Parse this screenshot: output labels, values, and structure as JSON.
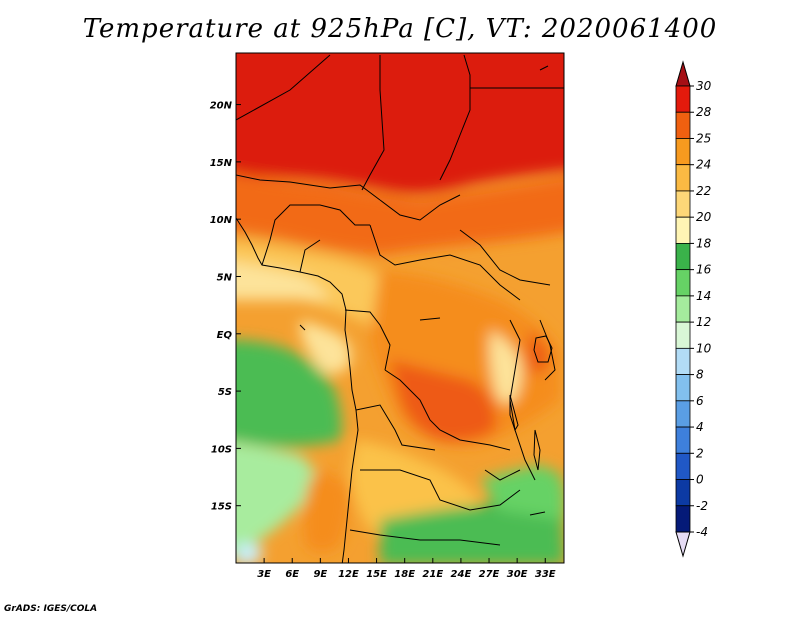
{
  "title": "Temperature at 925hPa [C], VT: 2020061400",
  "credit": "GrADS: IGES/COLA",
  "map": {
    "lat_labels": [
      "20N",
      "15N",
      "10N",
      "5N",
      "EQ",
      "5S",
      "10S",
      "15S"
    ],
    "lat_values": [
      20,
      15,
      10,
      5,
      0,
      -5,
      -10,
      -15
    ],
    "lon_labels": [
      "3E",
      "6E",
      "9E",
      "12E",
      "15E",
      "18E",
      "21E",
      "24E",
      "27E",
      "30E",
      "33E"
    ],
    "lon_values": [
      3,
      6,
      9,
      12,
      15,
      18,
      21,
      24,
      27,
      30,
      33
    ],
    "lat_range": [
      -20,
      24.5
    ],
    "lon_range": [
      0,
      35
    ]
  },
  "colorbar": {
    "labels": [
      "30",
      "28",
      "25",
      "24",
      "22",
      "20",
      "18",
      "16",
      "14",
      "12",
      "10",
      "8",
      "6",
      "4",
      "2",
      "0",
      "-2",
      "-4"
    ],
    "colors": [
      "#a50f15",
      "#e31a0c",
      "#f06010",
      "#f79a1f",
      "#fbba43",
      "#fdd778",
      "#fff5b4",
      "#3ab24a",
      "#66d265",
      "#a5ec9d",
      "#d9f7d6",
      "#b2dcf6",
      "#82c0ee",
      "#5a9ee4",
      "#3e80dc",
      "#2058c6",
      "#0c3aa4",
      "#051a78",
      "#e6dcf5"
    ]
  }
}
